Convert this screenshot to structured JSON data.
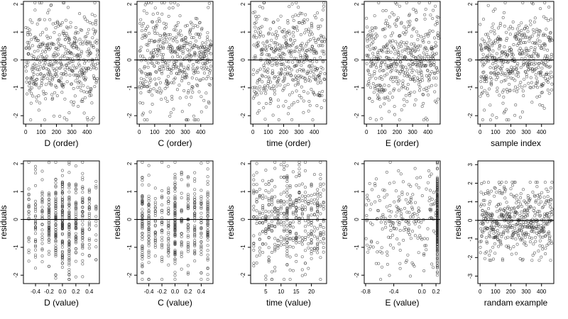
{
  "chart_data": [
    {
      "type": "scatter",
      "xlabel": "D (order)",
      "ylabel": "residuals",
      "xlim": [
        -15,
        480
      ],
      "ylim": [
        -2.3,
        2.1
      ],
      "xticks": [
        0,
        100,
        200,
        300,
        400
      ],
      "xtick_labels": [
        "0",
        "100",
        "200",
        "300",
        "400"
      ],
      "yticks": [
        -2,
        -1,
        0,
        1,
        2
      ],
      "ytick_labels": [
        "-2",
        "-1",
        "0",
        "1",
        "2"
      ],
      "hline": 0,
      "gen": {
        "kind": "index",
        "n": 470,
        "spread": 0.9,
        "seed": 11
      }
    },
    {
      "type": "scatter",
      "xlabel": "C (order)",
      "ylabel": "residuals",
      "xlim": [
        -15,
        480
      ],
      "ylim": [
        -2.3,
        2.1
      ],
      "xticks": [
        0,
        100,
        200,
        300,
        400
      ],
      "xtick_labels": [
        "0",
        "100",
        "200",
        "300",
        "400"
      ],
      "yticks": [
        -2,
        -1,
        0,
        1,
        2
      ],
      "ytick_labels": [
        "-2",
        "-1",
        "0",
        "1",
        "2"
      ],
      "hline": 0,
      "gen": {
        "kind": "index",
        "n": 470,
        "spread": 0.9,
        "seed": 23
      }
    },
    {
      "type": "scatter",
      "xlabel": "time (order)",
      "ylabel": "residuals",
      "xlim": [
        -15,
        480
      ],
      "ylim": [
        -2.3,
        2.1
      ],
      "xticks": [
        0,
        100,
        200,
        300,
        400
      ],
      "xtick_labels": [
        "0",
        "100",
        "200",
        "300",
        "400"
      ],
      "yticks": [
        -2,
        -1,
        0,
        1,
        2
      ],
      "ytick_labels": [
        "-2",
        "-1",
        "0",
        "1",
        "2"
      ],
      "hline": 0,
      "gen": {
        "kind": "index",
        "n": 470,
        "spread": 0.9,
        "seed": 37
      }
    },
    {
      "type": "scatter",
      "xlabel": "E (order)",
      "ylabel": "residuals",
      "xlim": [
        -15,
        480
      ],
      "ylim": [
        -2.3,
        2.1
      ],
      "xticks": [
        0,
        100,
        200,
        300,
        400
      ],
      "xtick_labels": [
        "0",
        "100",
        "200",
        "300",
        "400"
      ],
      "yticks": [
        -2,
        -1,
        0,
        1,
        2
      ],
      "ytick_labels": [
        "-2",
        "-1",
        "0",
        "1",
        "2"
      ],
      "hline": 0,
      "gen": {
        "kind": "index",
        "n": 470,
        "spread": 0.9,
        "seed": 41
      }
    },
    {
      "type": "scatter",
      "xlabel": "sample index",
      "ylabel": "residuals",
      "xlim": [
        -15,
        480
      ],
      "ylim": [
        -2.3,
        2.1
      ],
      "xticks": [
        0,
        100,
        200,
        300,
        400
      ],
      "xtick_labels": [
        "0",
        "100",
        "200",
        "300",
        "400"
      ],
      "yticks": [
        -2,
        -1,
        0,
        1,
        2
      ],
      "ytick_labels": [
        "-2",
        "-1",
        "0",
        "1",
        "2"
      ],
      "hline": 0,
      "gen": {
        "kind": "index",
        "n": 470,
        "spread": 0.9,
        "seed": 53
      }
    },
    {
      "type": "scatter",
      "xlabel": "D (value)",
      "ylabel": "residuals",
      "xlim": [
        -0.58,
        0.55
      ],
      "ylim": [
        -2.3,
        2.1
      ],
      "xticks": [
        -0.4,
        -0.2,
        0.0,
        0.2,
        0.4
      ],
      "xtick_labels": [
        "-0.4",
        "-0.2",
        "0.0",
        "0.2",
        "0.4"
      ],
      "yticks": [
        -2,
        -1,
        0,
        1,
        2
      ],
      "ytick_labels": [
        "-2",
        "-1",
        "0",
        "1",
        "2"
      ],
      "hline": 0,
      "gen": {
        "kind": "discrete",
        "levels": [
          -0.5,
          -0.4,
          -0.3,
          -0.2,
          -0.1,
          0.0,
          0.1,
          0.2,
          0.3,
          0.4,
          0.5
        ],
        "weights": [
          2,
          3,
          3,
          5,
          6,
          7,
          6,
          5,
          3,
          2,
          1
        ],
        "n": 470,
        "spread": 0.9,
        "seed": 61
      }
    },
    {
      "type": "scatter",
      "xlabel": "C (value)",
      "ylabel": "residuals",
      "xlim": [
        -0.58,
        0.58
      ],
      "ylim": [
        -2.3,
        2.1
      ],
      "xticks": [
        -0.4,
        -0.2,
        0.0,
        0.2,
        0.4
      ],
      "xtick_labels": [
        "-0.4",
        "-0.2",
        "0.0",
        "0.2",
        "0.4"
      ],
      "yticks": [
        -2,
        -1,
        0,
        1,
        2
      ],
      "ytick_labels": [
        "-2",
        "-1",
        "0",
        "1",
        "2"
      ],
      "hline": 0,
      "gen": {
        "kind": "discrete",
        "levels": [
          -0.5,
          -0.4,
          -0.3,
          -0.2,
          -0.1,
          0.0,
          0.1,
          0.2,
          0.3,
          0.4,
          0.5
        ],
        "weights": [
          5,
          4,
          3,
          3,
          3,
          7,
          3,
          3,
          3,
          4,
          5
        ],
        "n": 470,
        "spread": 0.9,
        "seed": 73
      }
    },
    {
      "type": "scatter",
      "xlabel": "time (value)",
      "ylabel": "residuals",
      "xlim": [
        0,
        25
      ],
      "ylim": [
        -2.3,
        2.1
      ],
      "xticks": [
        5,
        10,
        15,
        20
      ],
      "xtick_labels": [
        "5",
        "10",
        "15",
        "20"
      ],
      "yticks": [
        -2,
        -1,
        0,
        1,
        2
      ],
      "ytick_labels": [
        "-2",
        "-1",
        "0",
        "1",
        "2"
      ],
      "hline": 0,
      "gen": {
        "kind": "discrete",
        "levels": [
          1,
          2,
          3,
          4,
          5,
          6,
          7,
          8,
          9,
          10,
          11,
          12,
          13,
          14,
          15,
          16,
          17,
          18,
          19,
          20,
          21,
          22,
          23,
          24
        ],
        "weights": [
          1,
          1,
          1,
          1,
          1,
          1,
          1,
          1,
          1,
          1,
          1,
          3,
          1,
          1,
          1,
          1,
          1,
          1,
          1,
          1,
          1,
          1,
          1,
          1
        ],
        "n": 470,
        "spread": 0.9,
        "seed": 89
      }
    },
    {
      "type": "scatter",
      "xlabel": "E (value)",
      "ylabel": "residuals",
      "xlim": [
        -0.82,
        0.26
      ],
      "ylim": [
        -2.3,
        2.1
      ],
      "xticks": [
        -0.8,
        -0.4,
        0.0,
        0.2
      ],
      "xtick_labels": [
        "-0.8",
        "-0.4",
        "0.0",
        "0.2"
      ],
      "yticks": [
        -2,
        -1,
        0,
        1,
        2
      ],
      "ytick_labels": [
        "-2",
        "-1",
        "0",
        "1",
        "2"
      ],
      "hline": 0,
      "gen": {
        "kind": "cluster",
        "cluster_x": 0.22,
        "cluster_frac": 0.55,
        "xmin": -0.8,
        "xmax": 0.22,
        "n": 470,
        "spread": 0.9,
        "seed": 97
      }
    },
    {
      "type": "scatter",
      "xlabel": "randam example",
      "ylabel": "residuals",
      "xlim": [
        -15,
        480
      ],
      "ylim": [
        -3.4,
        3.2
      ],
      "xticks": [
        0,
        100,
        200,
        300,
        400
      ],
      "xtick_labels": [
        "0",
        "100",
        "200",
        "300",
        "400"
      ],
      "yticks": [
        -3,
        -2,
        -1,
        0,
        1,
        2,
        3
      ],
      "ytick_labels": [
        "-3",
        "-2",
        "-1",
        "0",
        "1",
        "2",
        "3"
      ],
      "hline": 0,
      "gen": {
        "kind": "index",
        "n": 470,
        "spread": 1.0,
        "seed": 103
      }
    }
  ]
}
